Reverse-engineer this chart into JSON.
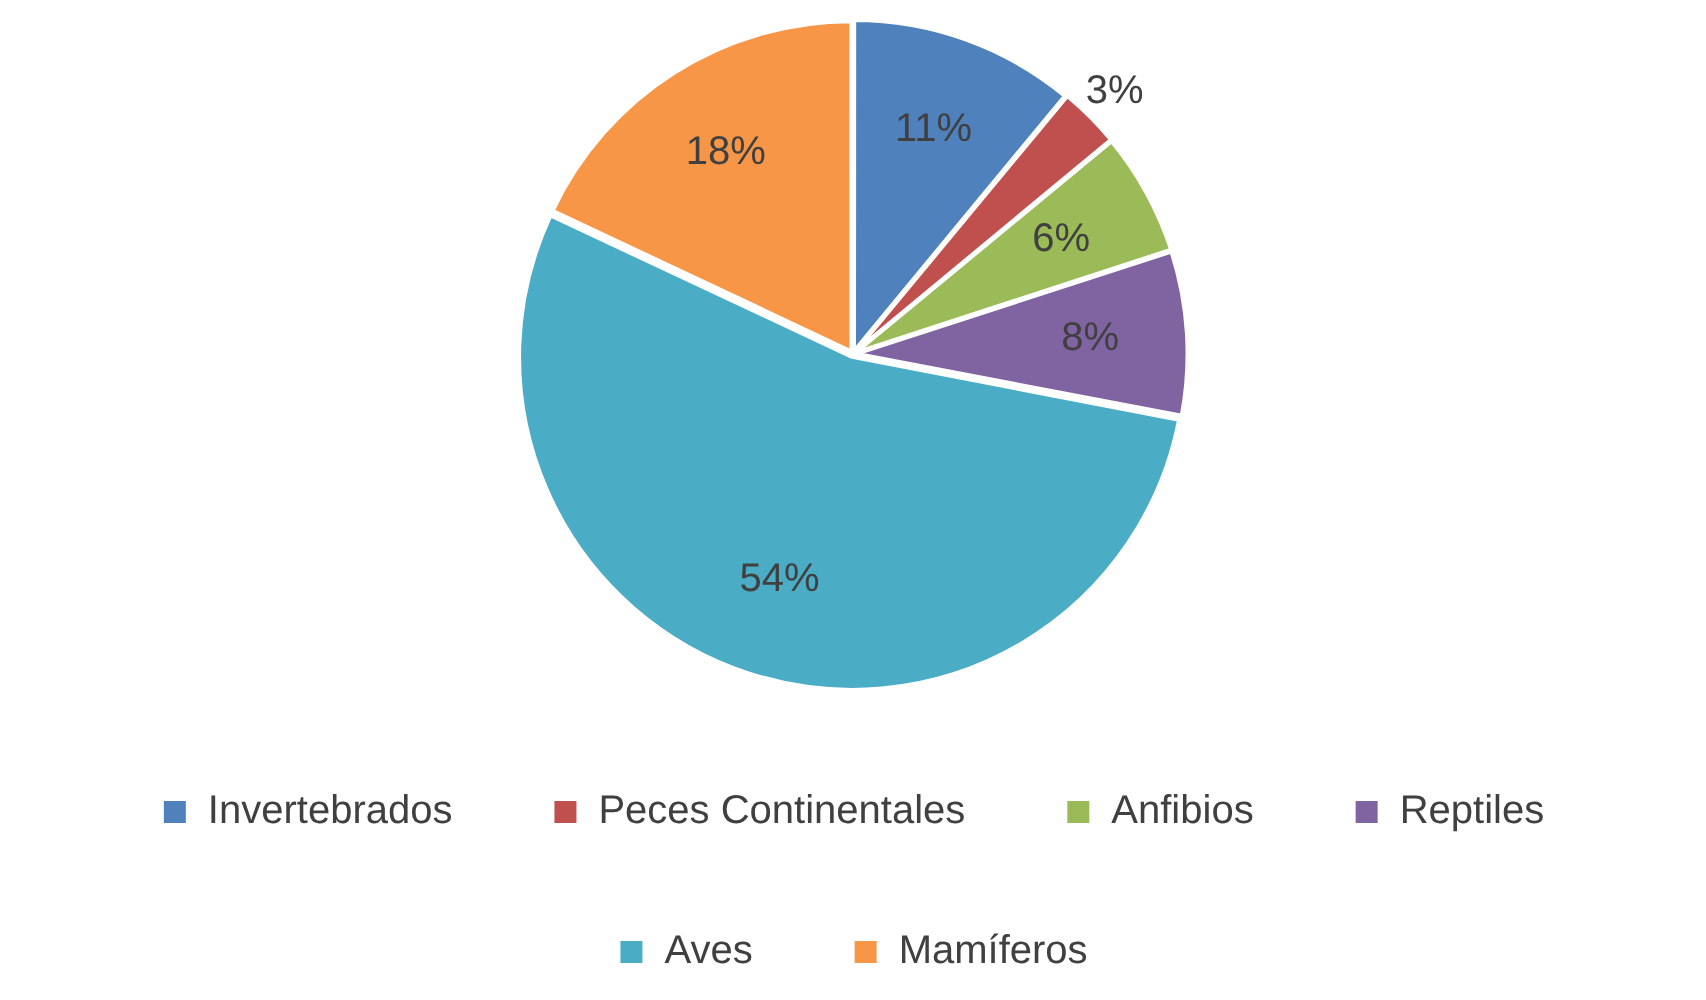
{
  "chart_data": {
    "type": "pie",
    "categories": [
      "Invertebrados",
      "Peces Continentales",
      "Anfibios",
      "Reptiles",
      "Aves",
      "Mamíferos"
    ],
    "values": [
      11,
      3,
      6,
      8,
      54,
      18
    ],
    "value_labels": [
      "11%",
      "3%",
      "6%",
      "8%",
      "54%",
      "18%"
    ],
    "colors": [
      "#4f81bd",
      "#c0504d",
      "#9bbb59",
      "#8064a2",
      "#4bacc6",
      "#f79646"
    ],
    "legend": "bottom"
  }
}
